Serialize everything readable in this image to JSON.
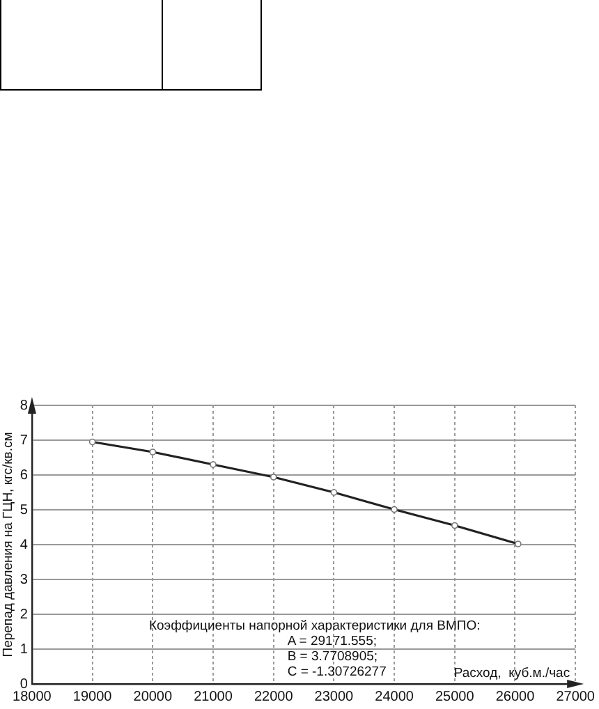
{
  "chart_data": {
    "type": "line",
    "xlabel": "Расход,  куб.м./час",
    "ylabel": "Перепад давления на ГЦН, кгс/кв.см",
    "x": [
      19000,
      20000,
      21000,
      22000,
      23000,
      24000,
      25000,
      26050
    ],
    "series": [
      {
        "color": "#222222",
        "values": [
          6.95,
          6.66,
          6.3,
          5.94,
          5.5,
          5.01,
          4.55,
          4.02
        ]
      }
    ],
    "xlim": [
      18000,
      27000
    ],
    "xticks": [
      18000,
      19000,
      20000,
      21000,
      22000,
      23000,
      24000,
      25000,
      26000,
      27000
    ],
    "ylim": [
      0,
      8
    ],
    "yticks": [
      0,
      1,
      2,
      3,
      4,
      5,
      6,
      7,
      8
    ],
    "annotations": [
      "Коэффициенты напорной характеристики для ВМПО:",
      "A = 29171.555;",
      "B = 3.7708905;",
      "C = -1.30726277"
    ],
    "grid": true,
    "marker": "circle",
    "line_style": "solid"
  }
}
